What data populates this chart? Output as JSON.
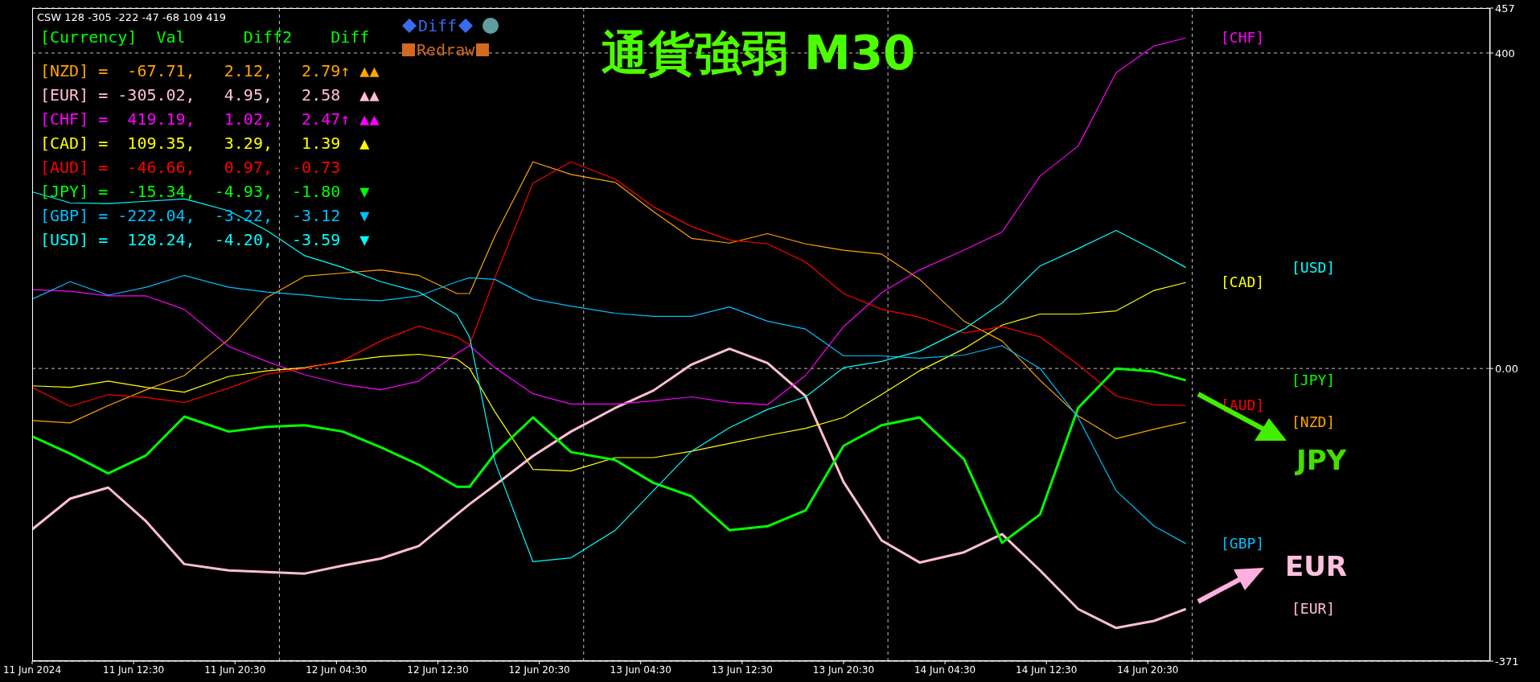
{
  "chart_data": {
    "type": "line",
    "title": "通貨強弱 M30",
    "x": [
      "2024-06-11T04:30",
      "2024-06-11T07:30",
      "2024-06-11T10:30",
      "2024-06-11T13:30",
      "2024-06-11T16:30",
      "2024-06-11T20:00",
      "2024-06-11T23:00",
      "2024-06-12T02:00",
      "2024-06-12T05:00",
      "2024-06-12T08:00",
      "2024-06-12T11:00",
      "2024-06-12T14:00",
      "2024-06-12T15:00",
      "2024-06-12T17:00",
      "2024-06-12T20:00",
      "2024-06-12T23:00",
      "2024-06-13T02:30",
      "2024-06-13T05:30",
      "2024-06-13T08:30",
      "2024-06-13T11:30",
      "2024-06-13T14:30",
      "2024-06-13T17:30",
      "2024-06-13T20:30",
      "2024-06-13T23:30",
      "2024-06-14T02:30",
      "2024-06-14T06:00",
      "2024-06-14T09:00",
      "2024-06-14T12:00",
      "2024-06-14T15:00",
      "2024-06-14T18:00",
      "2024-06-14T21:00",
      "2024-06-14T23:30"
    ],
    "xlim": [
      "2024-06-11T04:30",
      "2024-06-15T23:30"
    ],
    "xticks": [
      {
        "value": "2024-06-11T04:30",
        "label": "11 Jun 2024"
      },
      {
        "value": "2024-06-11T12:30",
        "label": "11 Jun 12:30"
      },
      {
        "value": "2024-06-11T20:30",
        "label": "11 Jun 20:30"
      },
      {
        "value": "2024-06-12T04:30",
        "label": "12 Jun 04:30"
      },
      {
        "value": "2024-06-12T12:30",
        "label": "12 Jun 12:30"
      },
      {
        "value": "2024-06-12T20:30",
        "label": "12 Jun 20:30"
      },
      {
        "value": "2024-06-13T04:30",
        "label": "13 Jun 04:30"
      },
      {
        "value": "2024-06-13T12:30",
        "label": "13 Jun 12:30"
      },
      {
        "value": "2024-06-13T20:30",
        "label": "13 Jun 20:30"
      },
      {
        "value": "2024-06-14T04:30",
        "label": "14 Jun 04:30"
      },
      {
        "value": "2024-06-14T12:30",
        "label": "14 Jun 12:30"
      },
      {
        "value": "2024-06-14T20:30",
        "label": "14 Jun 20:30"
      }
    ],
    "ylim": [
      -371,
      457
    ],
    "yticks": [
      457,
      400,
      {
        "value": 0,
        "label": "0.00"
      },
      -371
    ],
    "grid": "y",
    "ref_lines": [
      {
        "axis": "x",
        "value": "2024-06-12",
        "line_style": "dashed",
        "color": "#c0c0c0"
      },
      {
        "axis": "x",
        "value": "2024-06-13",
        "line_style": "dashed",
        "color": "#c0c0c0"
      },
      {
        "axis": "x",
        "value": "2024-06-14",
        "line_style": "dashed",
        "color": "#c0c0c0"
      },
      {
        "axis": "x",
        "value": "2024-06-15",
        "line_style": "dashed",
        "color": "#c0c0c0"
      }
    ],
    "annotations": [
      "CSW 128 -305 -222 -47 -68 109 419",
      "[Currency]  Val      Diff2    Diff",
      "[NZD] =  -67.71,   2.12,   2.79↑ ▲▲",
      "[EUR] = -305.02,   4.95,   2.58  ▲▲",
      "[CHF] =  419.19,   1.02,   2.47↑ ▲▲",
      "[CAD] =  109.35,   3.29,   1.39  ▲",
      "[AUD] =  -46.66,   0.97,  -0.73",
      "[JPY] =  -15.34,  -4.93,  -1.80  ▼",
      "[GBP] = -222.04,  -3.22,  -3.12  ▼",
      "[USD] =  128.24,  -4.20,  -3.59  ▼",
      "Diff",
      "Redraw",
      "JPY",
      "EUR"
    ],
    "series": [
      {
        "name": "[NZD]",
        "color": "#ffa500",
        "values": [
          -66,
          -69,
          -47,
          -27,
          -9,
          37,
          90,
          117,
          121,
          125,
          118,
          95,
          95,
          168,
          262,
          246,
          236,
          199,
          165,
          159,
          171,
          158,
          150,
          145,
          113,
          60,
          35,
          -15,
          -60,
          -89,
          -77,
          -68
        ]
      },
      {
        "name": "[EUR]",
        "color": "#ffc0cb",
        "values": [
          -204,
          -165,
          -151,
          -194,
          -248,
          -256,
          -258,
          -260,
          -250,
          -241,
          -225,
          -185,
          -172,
          -148,
          -111,
          -80,
          -50,
          -28,
          5,
          25,
          7,
          -35,
          -144,
          -218,
          -246,
          -233,
          -210,
          -256,
          -305,
          -329,
          -320,
          -305
        ]
      },
      {
        "name": "[CHF]",
        "color": "#ff00ff",
        "values": [
          100,
          98,
          92,
          92,
          75,
          28,
          9,
          -8,
          -20,
          -27,
          -16,
          19,
          29,
          1,
          -32,
          -45,
          -45,
          -41,
          -36,
          -43,
          -46,
          -9,
          53,
          96,
          125,
          150,
          173,
          244,
          282,
          375,
          409,
          419
        ]
      },
      {
        "name": "[CAD]",
        "color": "#ffff00",
        "values": [
          -22,
          -24,
          -16,
          -24,
          -30,
          -10,
          -3,
          1,
          9,
          15,
          18,
          12,
          0,
          -55,
          -128,
          -130,
          -113,
          -113,
          -105,
          -95,
          -85,
          -76,
          -62,
          -33,
          -3,
          25,
          55,
          69,
          69,
          73,
          99,
          109
        ]
      },
      {
        "name": "[AUD]",
        "color": "#ff0000",
        "values": [
          -24,
          -48,
          -33,
          -37,
          -43,
          -25,
          -7,
          0,
          10,
          35,
          54,
          40,
          30,
          115,
          235,
          262,
          240,
          205,
          180,
          163,
          158,
          135,
          95,
          75,
          65,
          45,
          53,
          40,
          5,
          -35,
          -46,
          -47
        ]
      },
      {
        "name": "[JPY]",
        "color": "#00ff00",
        "values": [
          -86,
          -108,
          -133,
          -110,
          -61,
          -80,
          -74,
          -72,
          -80,
          -100,
          -122,
          -150,
          -150,
          -108,
          -62,
          -106,
          -116,
          -145,
          -162,
          -205,
          -200,
          -180,
          -98,
          -72,
          -62,
          -115,
          -221,
          -185,
          -50,
          0,
          -4,
          -15
        ]
      },
      {
        "name": "[GBP]",
        "color": "#00bfff",
        "values": [
          88,
          110,
          93,
          103,
          118,
          103,
          97,
          93,
          88,
          86,
          92,
          110,
          115,
          113,
          88,
          79,
          70,
          66,
          66,
          78,
          60,
          50,
          16,
          16,
          13,
          17,
          29,
          0,
          -62,
          -155,
          -200,
          -222
        ]
      },
      {
        "name": "[USD]",
        "color": "#00ffff",
        "values": [
          224,
          210,
          209,
          212,
          215,
          200,
          175,
          143,
          128,
          110,
          97,
          68,
          40,
          -118,
          -245,
          -240,
          -205,
          -155,
          -105,
          -75,
          -52,
          -36,
          1,
          9,
          22,
          50,
          83,
          130,
          152,
          175,
          150,
          128
        ]
      }
    ]
  }
}
